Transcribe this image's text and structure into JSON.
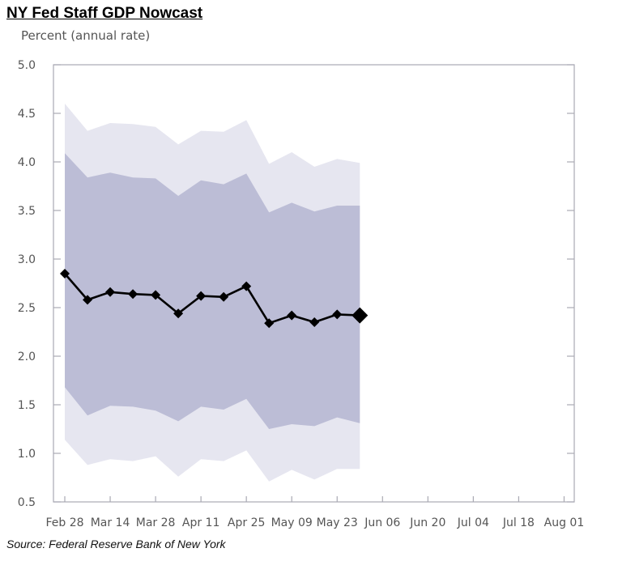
{
  "chart_data": {
    "type": "line",
    "title": "NY Fed Staff GDP Nowcast",
    "ylabel": "Percent (annual rate)",
    "xlabel": "",
    "source": "Source: Federal Reserve Bank of New York",
    "ylim": [
      0.5,
      5.0
    ],
    "yticks": [
      "5.0",
      "4.5",
      "4.0",
      "3.5",
      "3.0",
      "2.5",
      "2.0",
      "1.5",
      "1.0",
      "0.5"
    ],
    "ytick_values": [
      5.0,
      4.5,
      4.0,
      3.5,
      3.0,
      2.5,
      2.0,
      1.5,
      1.0,
      0.5
    ],
    "xticks": [
      "Feb 28",
      "Mar 14",
      "Mar 28",
      "Apr 11",
      "Apr 25",
      "May 09",
      "May 23",
      "Jun 06",
      "Jun 20",
      "Jul 04",
      "Jul 18",
      "Aug 01"
    ],
    "x_range_weeks": [
      -0.5,
      23.0
    ],
    "weeks": [
      0,
      1,
      2,
      3,
      4,
      5,
      6,
      7,
      8,
      9,
      10,
      11,
      12,
      13
    ],
    "series": [
      {
        "name": "Nowcast",
        "values": [
          2.85,
          2.58,
          2.66,
          2.64,
          2.63,
          2.44,
          2.62,
          2.61,
          2.72,
          2.34,
          2.42,
          2.35,
          2.43,
          2.42
        ]
      }
    ],
    "bands": [
      {
        "name": "Outer band",
        "upper": [
          4.6,
          4.32,
          4.4,
          4.39,
          4.36,
          4.18,
          4.32,
          4.31,
          4.43,
          3.98,
          4.1,
          3.95,
          4.03,
          3.99
        ],
        "lower": [
          1.14,
          0.88,
          0.94,
          0.92,
          0.97,
          0.76,
          0.94,
          0.92,
          1.03,
          0.71,
          0.83,
          0.73,
          0.84,
          0.84
        ]
      },
      {
        "name": "Inner band",
        "upper": [
          4.09,
          3.84,
          3.89,
          3.84,
          3.83,
          3.65,
          3.81,
          3.77,
          3.88,
          3.48,
          3.58,
          3.49,
          3.55,
          3.55
        ],
        "lower": [
          1.68,
          1.39,
          1.49,
          1.48,
          1.44,
          1.33,
          1.48,
          1.45,
          1.56,
          1.25,
          1.3,
          1.28,
          1.37,
          1.31
        ]
      }
    ],
    "colors": {
      "outer_band": "#e6e6f0",
      "inner_band": "#bcbdd6",
      "line": "#000000",
      "axis": "#a9a9b3",
      "tick_text": "#555555"
    },
    "grid": false
  }
}
